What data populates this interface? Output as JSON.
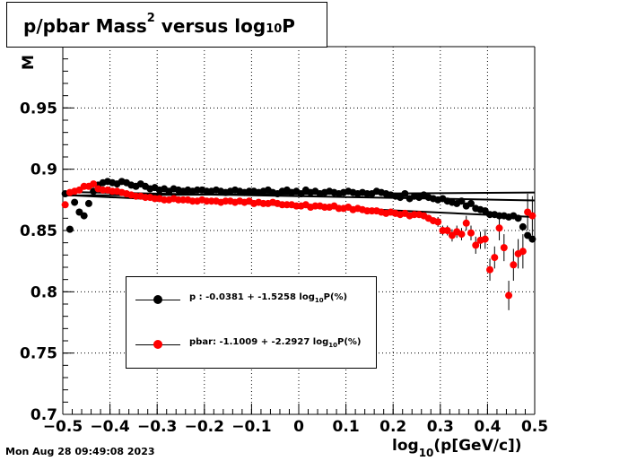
{
  "title": {
    "prefix": "p/pbar Mass",
    "sup": "2",
    "middle": " versus log",
    "sub": "10",
    "suffix": "P"
  },
  "x_axis_title": {
    "prefix": "log",
    "sub": "10",
    "suffix": "(p[GeV/c])"
  },
  "y_axis_title_partial": "M",
  "timestamp": "Mon Aug 28 09:49:08 2023",
  "legend": [
    {
      "label_prefix": "p  : -0.0381 + -1.5258 log",
      "label_sub": "10",
      "label_suffix": "P(%)",
      "color": "#000000"
    },
    {
      "label_prefix": "pbar: -1.1009 + -2.2927 log",
      "label_sub": "10",
      "label_suffix": "P(%)",
      "color": "#ff0000"
    }
  ],
  "chart_data": {
    "type": "scatter",
    "title": "p/pbar Mass^2 versus log10 P",
    "xlabel": "log10(p[GeV/c])",
    "ylabel": "M",
    "xlim": [
      -0.5,
      0.5
    ],
    "ylim": [
      0.7,
      1.0
    ],
    "x_ticks": [
      "−0.5",
      "−0.4",
      "−0.3",
      "−0.2",
      "−0.1",
      "0",
      "0.1",
      "0.2",
      "0.3",
      "0.4",
      "0.5"
    ],
    "y_ticks": [
      "0.7",
      "0.75",
      "0.8",
      "0.85",
      "0.9",
      "0.95"
    ],
    "grid": true,
    "legend_position": "lower-left",
    "series": [
      {
        "name": "p",
        "color": "#000000",
        "x": [
          -0.495,
          -0.485,
          -0.475,
          -0.465,
          -0.455,
          -0.445,
          -0.435,
          -0.425,
          -0.415,
          -0.405,
          -0.395,
          -0.385,
          -0.375,
          -0.365,
          -0.355,
          -0.345,
          -0.335,
          -0.325,
          -0.315,
          -0.305,
          -0.295,
          -0.285,
          -0.275,
          -0.265,
          -0.255,
          -0.245,
          -0.235,
          -0.225,
          -0.215,
          -0.205,
          -0.195,
          -0.185,
          -0.175,
          -0.165,
          -0.155,
          -0.145,
          -0.135,
          -0.125,
          -0.115,
          -0.105,
          -0.095,
          -0.085,
          -0.075,
          -0.065,
          -0.055,
          -0.045,
          -0.035,
          -0.025,
          -0.015,
          -0.005,
          0.005,
          0.015,
          0.025,
          0.035,
          0.045,
          0.055,
          0.065,
          0.075,
          0.085,
          0.095,
          0.105,
          0.115,
          0.125,
          0.135,
          0.145,
          0.155,
          0.165,
          0.175,
          0.185,
          0.195,
          0.205,
          0.215,
          0.225,
          0.235,
          0.245,
          0.255,
          0.265,
          0.275,
          0.285,
          0.295,
          0.305,
          0.315,
          0.325,
          0.335,
          0.345,
          0.355,
          0.365,
          0.375,
          0.385,
          0.395,
          0.405,
          0.415,
          0.425,
          0.435,
          0.445,
          0.455,
          0.465,
          0.475,
          0.485,
          0.495
        ],
        "y": [
          0.88,
          0.851,
          0.873,
          0.865,
          0.862,
          0.872,
          0.882,
          0.887,
          0.889,
          0.89,
          0.889,
          0.888,
          0.89,
          0.889,
          0.887,
          0.886,
          0.888,
          0.886,
          0.884,
          0.885,
          0.883,
          0.884,
          0.882,
          0.884,
          0.883,
          0.882,
          0.883,
          0.882,
          0.883,
          0.883,
          0.882,
          0.882,
          0.883,
          0.882,
          0.881,
          0.882,
          0.883,
          0.882,
          0.881,
          0.882,
          0.882,
          0.881,
          0.882,
          0.883,
          0.881,
          0.88,
          0.882,
          0.883,
          0.881,
          0.882,
          0.88,
          0.883,
          0.881,
          0.882,
          0.88,
          0.881,
          0.882,
          0.881,
          0.88,
          0.881,
          0.882,
          0.881,
          0.88,
          0.881,
          0.88,
          0.88,
          0.882,
          0.881,
          0.88,
          0.879,
          0.878,
          0.877,
          0.88,
          0.876,
          0.878,
          0.877,
          0.879,
          0.877,
          0.876,
          0.875,
          0.876,
          0.874,
          0.873,
          0.872,
          0.874,
          0.87,
          0.872,
          0.868,
          0.867,
          0.866,
          0.863,
          0.863,
          0.862,
          0.862,
          0.861,
          0.862,
          0.86,
          0.853,
          0.846,
          0.843
        ]
      },
      {
        "name": "pbar",
        "color": "#ff0000",
        "x": [
          -0.495,
          -0.485,
          -0.475,
          -0.465,
          -0.455,
          -0.445,
          -0.435,
          -0.425,
          -0.415,
          -0.405,
          -0.395,
          -0.385,
          -0.375,
          -0.365,
          -0.355,
          -0.345,
          -0.335,
          -0.325,
          -0.315,
          -0.305,
          -0.295,
          -0.285,
          -0.275,
          -0.265,
          -0.255,
          -0.245,
          -0.235,
          -0.225,
          -0.215,
          -0.205,
          -0.195,
          -0.185,
          -0.175,
          -0.165,
          -0.155,
          -0.145,
          -0.135,
          -0.125,
          -0.115,
          -0.105,
          -0.095,
          -0.085,
          -0.075,
          -0.065,
          -0.055,
          -0.045,
          -0.035,
          -0.025,
          -0.015,
          -0.005,
          0.005,
          0.015,
          0.025,
          0.035,
          0.045,
          0.055,
          0.065,
          0.075,
          0.085,
          0.095,
          0.105,
          0.115,
          0.125,
          0.135,
          0.145,
          0.155,
          0.165,
          0.175,
          0.185,
          0.195,
          0.205,
          0.215,
          0.225,
          0.235,
          0.245,
          0.255,
          0.265,
          0.275,
          0.285,
          0.295,
          0.305,
          0.315,
          0.325,
          0.335,
          0.345,
          0.355,
          0.365,
          0.375,
          0.385,
          0.395,
          0.405,
          0.415,
          0.425,
          0.435,
          0.445,
          0.455,
          0.465,
          0.475,
          0.485,
          0.495
        ],
        "y": [
          0.871,
          0.881,
          0.882,
          0.883,
          0.886,
          0.886,
          0.888,
          0.884,
          0.883,
          0.883,
          0.882,
          0.882,
          0.881,
          0.88,
          0.879,
          0.878,
          0.878,
          0.877,
          0.877,
          0.876,
          0.876,
          0.875,
          0.875,
          0.876,
          0.875,
          0.875,
          0.875,
          0.874,
          0.874,
          0.875,
          0.874,
          0.874,
          0.874,
          0.873,
          0.874,
          0.874,
          0.873,
          0.874,
          0.873,
          0.874,
          0.872,
          0.873,
          0.872,
          0.872,
          0.873,
          0.872,
          0.871,
          0.871,
          0.871,
          0.87,
          0.87,
          0.871,
          0.869,
          0.87,
          0.87,
          0.869,
          0.869,
          0.87,
          0.868,
          0.868,
          0.869,
          0.867,
          0.868,
          0.867,
          0.866,
          0.866,
          0.866,
          0.865,
          0.864,
          0.865,
          0.864,
          0.863,
          0.864,
          0.862,
          0.863,
          0.863,
          0.862,
          0.86,
          0.858,
          0.857,
          0.85,
          0.85,
          0.846,
          0.849,
          0.847,
          0.856,
          0.848,
          0.838,
          0.842,
          0.843,
          0.818,
          0.828,
          0.852,
          0.836,
          0.797,
          0.822,
          0.831,
          0.833,
          0.865,
          0.862
        ],
        "yerr": [
          0.002,
          0.002,
          0.002,
          0.002,
          0.002,
          0.002,
          0.002,
          0.002,
          0.002,
          0.002,
          0.002,
          0.002,
          0.002,
          0.002,
          0.002,
          0.002,
          0.002,
          0.002,
          0.002,
          0.002,
          0.002,
          0.002,
          0.002,
          0.002,
          0.002,
          0.002,
          0.002,
          0.002,
          0.002,
          0.002,
          0.002,
          0.002,
          0.002,
          0.002,
          0.002,
          0.002,
          0.002,
          0.002,
          0.002,
          0.002,
          0.002,
          0.002,
          0.002,
          0.002,
          0.002,
          0.002,
          0.002,
          0.002,
          0.002,
          0.002,
          0.002,
          0.002,
          0.002,
          0.002,
          0.002,
          0.002,
          0.002,
          0.002,
          0.002,
          0.002,
          0.002,
          0.002,
          0.002,
          0.002,
          0.002,
          0.002,
          0.002,
          0.002,
          0.002,
          0.002,
          0.002,
          0.002,
          0.002,
          0.002,
          0.002,
          0.002,
          0.003,
          0.003,
          0.003,
          0.004,
          0.004,
          0.004,
          0.005,
          0.005,
          0.005,
          0.006,
          0.006,
          0.007,
          0.007,
          0.008,
          0.009,
          0.009,
          0.01,
          0.011,
          0.012,
          0.013,
          0.012,
          0.014,
          0.015,
          0.016
        ]
      }
    ],
    "fit_lines": [
      {
        "name": "p",
        "color": "#000000",
        "x": [
          -0.5,
          0.5
        ],
        "y": [
          0.8815,
          0.8745
        ]
      },
      {
        "name": "pbar",
        "color": "#000000",
        "x": [
          -0.5,
          0.5
        ],
        "y": [
          0.879,
          0.861
        ]
      },
      {
        "name": "flat",
        "color": "#000000",
        "x": [
          -0.5,
          0.5
        ],
        "y": [
          0.8785,
          0.881
        ]
      }
    ]
  }
}
